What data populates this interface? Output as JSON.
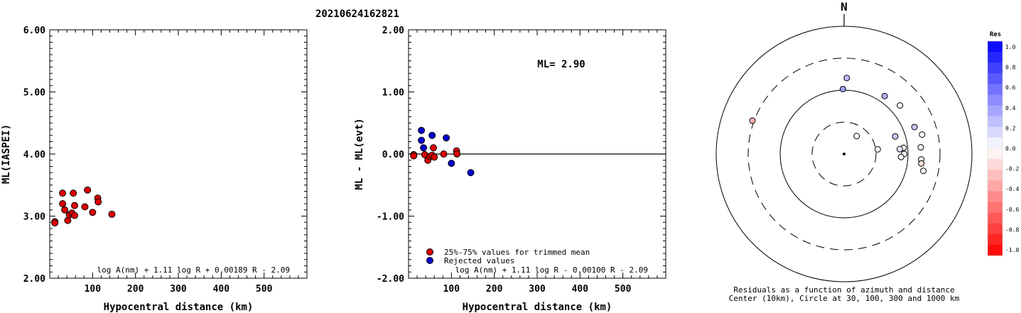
{
  "title": "20210624162821",
  "chart_data": [
    {
      "type": "scatter",
      "ylabel": "ML(IASPEI)",
      "xlabel": "Hypocentral distance (km)",
      "xlim": [
        0,
        600
      ],
      "ylim": [
        2.0,
        6.0
      ],
      "xticks": [
        "100",
        "200",
        "300",
        "400",
        "500"
      ],
      "yticks": [
        "2.00",
        "3.00",
        "4.00",
        "5.00",
        "6.00"
      ],
      "formula": "log A(nm) + 1.11 log R + 0.00189 R - 2.09",
      "series": [
        {
          "color": "#dd0000",
          "points": [
            [
              12,
              2.91
            ],
            [
              12,
              2.89
            ],
            [
              30,
              3.37
            ],
            [
              30,
              3.2
            ],
            [
              35,
              3.1
            ],
            [
              42,
              2.93
            ],
            [
              46,
              3.02
            ],
            [
              52,
              3.05
            ],
            [
              55,
              3.37
            ],
            [
              58,
              3.17
            ],
            [
              58,
              3.01
            ],
            [
              82,
              3.15
            ],
            [
              88,
              3.42
            ],
            [
              100,
              3.06
            ],
            [
              112,
              3.29
            ],
            [
              113,
              3.23
            ],
            [
              145,
              3.03
            ]
          ]
        }
      ]
    },
    {
      "type": "scatter",
      "ylabel": "ML - ML(evt)",
      "xlabel": "Hypocentral distance (km)",
      "xlim": [
        0,
        600
      ],
      "ylim": [
        -2.0,
        2.0
      ],
      "xticks": [
        "100",
        "200",
        "300",
        "400",
        "500"
      ],
      "yticks": [
        "-2.00",
        "-1.00",
        "0.00",
        "1.00",
        "2.00"
      ],
      "annotation": "ML= 2.90",
      "formula": "log A(nm) + 1.11 log R - 0.00100 R - 2.09",
      "legend": [
        {
          "label": "25%-75% values for trimmed mean",
          "color": "#dd0000"
        },
        {
          "label": "Rejected values",
          "color": "#0000cc"
        }
      ],
      "series": [
        {
          "color": "#dd0000",
          "points": [
            [
              12,
              -0.01
            ],
            [
              12,
              -0.03
            ],
            [
              38,
              -0.01
            ],
            [
              45,
              -0.1
            ],
            [
              50,
              -0.04
            ],
            [
              55,
              -0.02
            ],
            [
              58,
              0.1
            ],
            [
              60,
              -0.05
            ],
            [
              82,
              0.0
            ],
            [
              112,
              0.05
            ],
            [
              113,
              0.0
            ]
          ]
        },
        {
          "color": "#0000cc",
          "points": [
            [
              30,
              0.38
            ],
            [
              30,
              0.22
            ],
            [
              35,
              0.1
            ],
            [
              55,
              0.3
            ],
            [
              88,
              0.26
            ],
            [
              100,
              -0.15
            ],
            [
              145,
              -0.3
            ]
          ]
        }
      ]
    },
    {
      "type": "scatter",
      "subtype": "polar",
      "north_label": "N",
      "caption_1": "Residuals as a function of azimuth and distance",
      "caption_2": "Center (10km), Circle at 30, 100, 300 and 1000 km",
      "colorbar_title": "Res",
      "colorbar_ticks": [
        "1.0",
        "0.8",
        "0.6",
        "0.4",
        "0.2",
        "0.0",
        "-0.2",
        "-0.4",
        "-0.6",
        "-0.8",
        "-1.0"
      ],
      "stations": [
        {
          "az": 290,
          "dist": 335,
          "res": -0.3
        },
        {
          "az": 2,
          "dist": 155,
          "res": 0.26
        },
        {
          "az": 359,
          "dist": 104,
          "res": 0.38
        },
        {
          "az": 35,
          "dist": 128,
          "res": 0.3
        },
        {
          "az": 49,
          "dist": 144,
          "res": 0.0
        },
        {
          "az": 69,
          "dist": 151,
          "res": 0.22
        },
        {
          "az": 71,
          "dist": 70,
          "res": 0.22
        },
        {
          "az": 76,
          "dist": 181,
          "res": 0.0
        },
        {
          "az": 85,
          "dist": 160,
          "res": 0.05
        },
        {
          "az": 84,
          "dist": 86,
          "res": 0.0
        },
        {
          "az": 85,
          "dist": 75,
          "res": 0.1
        },
        {
          "az": 90,
          "dist": 87,
          "res": 0.0
        },
        {
          "az": 93,
          "dist": 78,
          "res": 0.0
        },
        {
          "az": 94,
          "dist": 162,
          "res": -0.1
        },
        {
          "az": 97,
          "dist": 165,
          "res": -0.15
        },
        {
          "az": 102,
          "dist": 185,
          "res": 0.0
        },
        {
          "az": 35,
          "dist": 22,
          "res": 0.0
        },
        {
          "az": 82,
          "dist": 34,
          "res": 0.0
        }
      ]
    }
  ]
}
